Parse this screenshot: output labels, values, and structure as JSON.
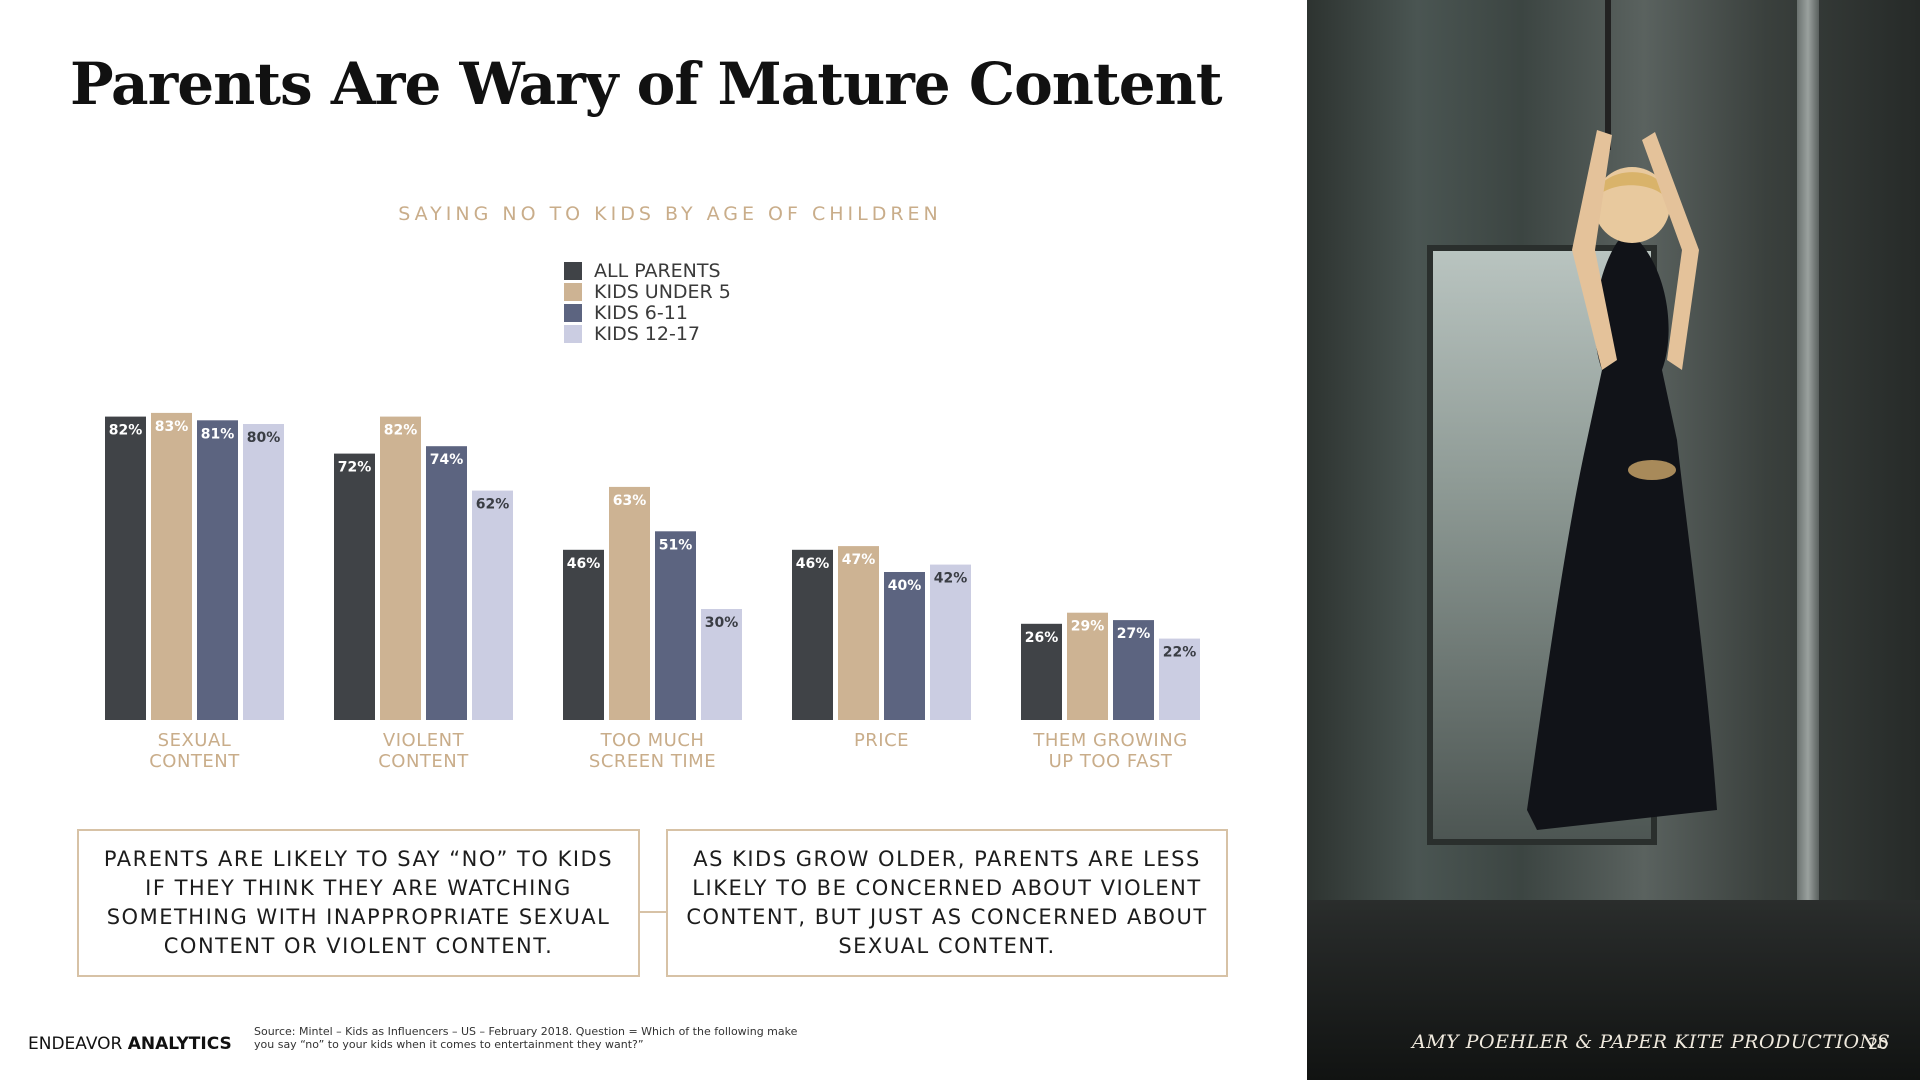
{
  "slide": {
    "title": "Parents Are Wary of Mature Content",
    "brand_regular": "ENDEAVOR",
    "brand_bold": "ANALYTICS",
    "source": "Source:  Mintel – Kids as Influencers – US – February 2018.  Question = Which of the following make you say “no” to your kids when it comes to entertainment they want?”",
    "photo_credit": "AMY POEHLER & PAPER KITE PRODUCTIONS",
    "page_number": "20"
  },
  "callouts": {
    "left": "PARENTS ARE LIKELY TO SAY “NO” TO KIDS IF THEY THINK THEY ARE WATCHING SOMETHING WITH INAPPROPRIATE SEXUAL CONTENT OR VIOLENT CONTENT.",
    "right": "AS KIDS GROW OLDER, PARENTS ARE LESS LIKELY TO BE CONCERNED ABOUT VIOLENT CONTENT, BUT JUST AS CONCERNED ABOUT SEXUAL CONTENT."
  },
  "chart_data": {
    "type": "bar",
    "title": "SAYING NO TO KIDS BY AGE OF CHILDREN",
    "categories": [
      [
        "SEXUAL",
        "CONTENT"
      ],
      [
        "VIOLENT",
        "CONTENT"
      ],
      [
        "TOO MUCH",
        "SCREEN TIME"
      ],
      [
        "PRICE"
      ],
      [
        "THEM GROWING",
        "UP TOO FAST"
      ]
    ],
    "series": [
      {
        "name": "ALL PARENTS",
        "color": "#404347",
        "label_color": "#ffffff",
        "values": [
          82,
          72,
          46,
          46,
          26
        ]
      },
      {
        "name": "KIDS UNDER 5",
        "color": "#cdb393",
        "label_color": "#ffffff",
        "values": [
          83,
          82,
          63,
          47,
          29
        ]
      },
      {
        "name": "KIDS 6-11",
        "color": "#5c6480",
        "label_color": "#ffffff",
        "values": [
          81,
          74,
          51,
          40,
          27
        ]
      },
      {
        "name": "KIDS 12-17",
        "color": "#cbcde2",
        "label_color": "#3a3d44",
        "values": [
          80,
          62,
          30,
          42,
          22
        ]
      }
    ],
    "value_suffix": "%",
    "ylim": [
      0,
      100
    ],
    "grid": false,
    "legend_position": "top-center",
    "category_label_color": "#c9ad8a"
  }
}
